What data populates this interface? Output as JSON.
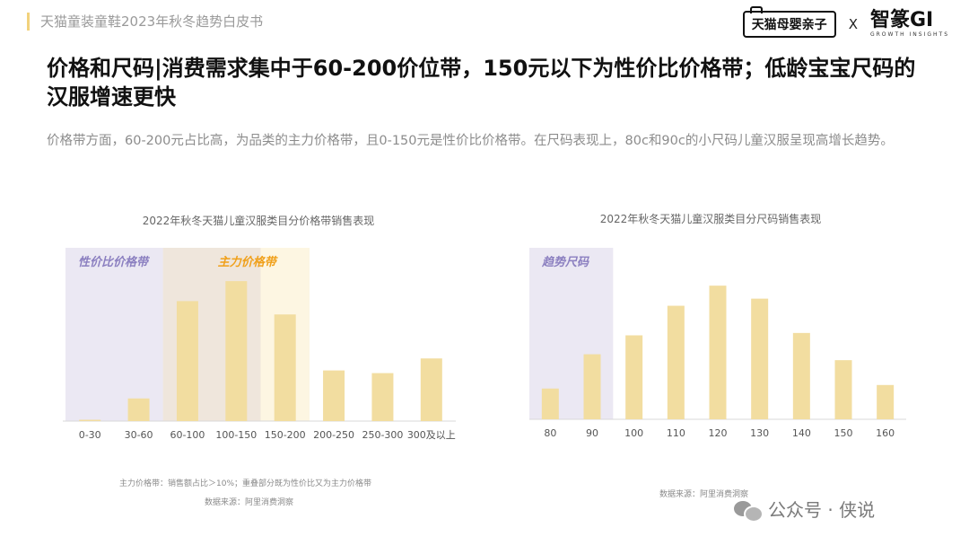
{
  "header": {
    "doc_title": "天猫童装童鞋2023年秋冬趋势白皮书",
    "brand_left": "天猫母婴亲子",
    "brand_x": "X",
    "brand_right": "智篆GI",
    "brand_right_sub": "GROWTH INSIGHTS"
  },
  "headline": "价格和尺码|消费需求集中于60-200价位带，150元以下为性价比价格带；低龄宝宝尺码的汉服增速更快",
  "subtext": "价格带方面，60-200元占比高，为品类的主力价格带，且0-150元是性价比价格带。在尺码表现上，80c和90c的小尺码儿童汉服呈现高增长趋势。",
  "colors": {
    "bar": "#f2dda0",
    "zone_purple": "#ebe8f3",
    "zone_tan": "#f4ede4",
    "zone_yellow": "#fdf6e2",
    "label_purple": "#8b7fc0",
    "label_orange": "#f0a01a"
  },
  "chart_data": [
    {
      "type": "bar",
      "title": "2022年秋冬天猫儿童汉服类目分价格带销售表现",
      "categories": [
        "0-30",
        "30-60",
        "60-100",
        "100-150",
        "150-200",
        "200-250",
        "250-300",
        "300及以上"
      ],
      "values": [
        1,
        17,
        90,
        105,
        80,
        38,
        36,
        47
      ],
      "ylim": [
        0,
        130
      ],
      "grid": false,
      "value_note": "relative sales index (no y-axis shown)",
      "zones": [
        {
          "label": "性价比价格带",
          "from": "0-30",
          "to": "100-150",
          "color": "zone_purple"
        },
        {
          "label": "主力价格带",
          "from": "60-100",
          "to": "150-200",
          "color": "zone_tan"
        }
      ],
      "notes": [
        "主力价格带：销售额占比＞10%；重叠部分既为性价比又为主力价格带",
        "数据来源：阿里消费洞察"
      ]
    },
    {
      "type": "bar",
      "title": "2022年秋冬天猫儿童汉服类目分尺码销售表现",
      "categories": [
        "80",
        "90",
        "100",
        "110",
        "120",
        "130",
        "140",
        "150",
        "160"
      ],
      "values": [
        26,
        55,
        71,
        96,
        113,
        102,
        73,
        50,
        29
      ],
      "ylim": [
        0,
        145
      ],
      "grid": false,
      "value_note": "relative sales index (no y-axis shown)",
      "zones": [
        {
          "label": "趋势尺码",
          "from": "80",
          "to": "90",
          "color": "zone_purple"
        }
      ],
      "notes": [
        "数据来源：阿里消费洞察"
      ]
    }
  ],
  "watermark": "公众号 · 侠说"
}
